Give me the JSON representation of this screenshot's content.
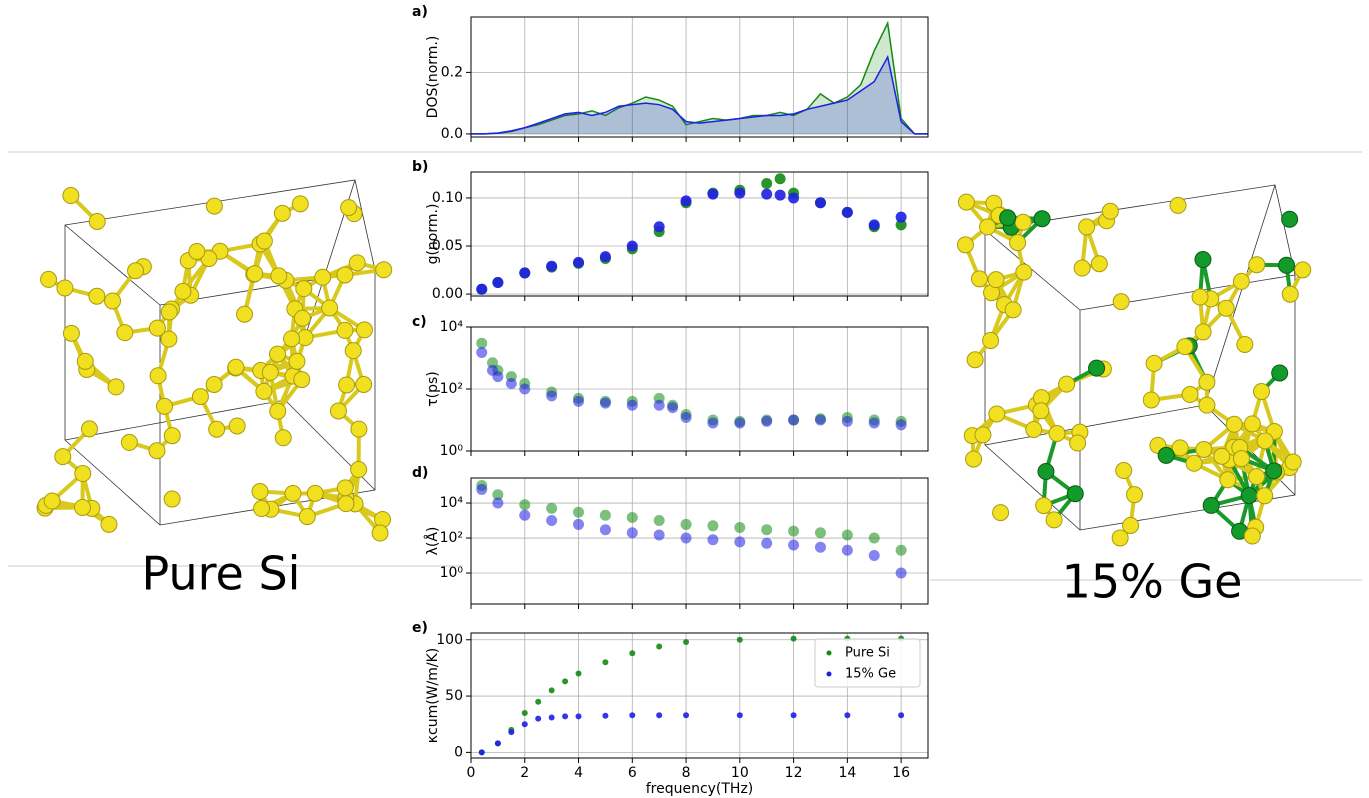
{
  "structures": [
    {
      "label": "Pure Si",
      "color": "#138a13"
    },
    {
      "label": "15% Ge",
      "color": "#1f1fe6"
    }
  ],
  "chart_data": [
    {
      "type": "area",
      "panel_label": "a)",
      "ylabel": "DOS(norm.)",
      "grid": true,
      "x": [
        0,
        0.5,
        1,
        1.5,
        2,
        2.5,
        3,
        3.5,
        4,
        4.5,
        5,
        5.5,
        6,
        6.5,
        7,
        7.5,
        8,
        8.5,
        9,
        9.5,
        10,
        10.5,
        11,
        11.5,
        12,
        12.5,
        13,
        13.5,
        14,
        14.5,
        15,
        15.5,
        16,
        16.5,
        17
      ],
      "xlim": [
        0,
        17
      ],
      "xticks": [
        0,
        2,
        4,
        6,
        8,
        10,
        12,
        14,
        16
      ],
      "ylim": [
        -0.01,
        0.38
      ],
      "yticks": [
        {
          "value": 0,
          "label": "0.0"
        },
        {
          "value": 0.2,
          "label": "0.2"
        }
      ],
      "series": [
        {
          "name": "Pure Si",
          "color": "#138a13",
          "values": [
            0,
            0,
            0.002,
            0.008,
            0.02,
            0.03,
            0.045,
            0.06,
            0.065,
            0.075,
            0.06,
            0.085,
            0.1,
            0.12,
            0.11,
            0.09,
            0.03,
            0.04,
            0.05,
            0.045,
            0.05,
            0.06,
            0.06,
            0.07,
            0.06,
            0.08,
            0.13,
            0.1,
            0.12,
            0.16,
            0.27,
            0.36,
            0.05,
            0,
            0
          ]
        },
        {
          "name": "15% Ge",
          "color": "#1f1fe6",
          "values": [
            0,
            0,
            0.003,
            0.01,
            0.02,
            0.035,
            0.05,
            0.065,
            0.07,
            0.06,
            0.07,
            0.09,
            0.095,
            0.1,
            0.095,
            0.08,
            0.04,
            0.035,
            0.04,
            0.045,
            0.05,
            0.055,
            0.06,
            0.06,
            0.065,
            0.08,
            0.09,
            0.1,
            0.11,
            0.14,
            0.17,
            0.25,
            0.04,
            0,
            0
          ]
        }
      ]
    },
    {
      "type": "scatter",
      "panel_label": "b)",
      "ylabel": "g(norm.)",
      "grid": true,
      "x": [
        0.4,
        1,
        2,
        3,
        4,
        5,
        6,
        7,
        8,
        9,
        10,
        11,
        11.5,
        12,
        13,
        14,
        15,
        16
      ],
      "xlim": [
        0,
        17
      ],
      "xticks": [
        0,
        2,
        4,
        6,
        8,
        10,
        12,
        14,
        16
      ],
      "ylim": [
        -0.002,
        0.127
      ],
      "yticks": [
        {
          "value": 0,
          "label": "0.00"
        },
        {
          "value": 0.05,
          "label": "0.05"
        },
        {
          "value": 0.1,
          "label": "0.10"
        }
      ],
      "series": [
        {
          "name": "Pure Si",
          "color": "#138a13",
          "values": [
            0.005,
            0.012,
            0.022,
            0.028,
            0.032,
            0.037,
            0.047,
            0.065,
            0.095,
            0.105,
            0.108,
            0.115,
            0.12,
            0.105,
            0.095,
            0.085,
            0.07,
            0.072
          ]
        },
        {
          "name": "15% Ge",
          "color": "#1f1fe6",
          "values": [
            0.005,
            0.012,
            0.022,
            0.029,
            0.033,
            0.039,
            0.05,
            0.07,
            0.097,
            0.104,
            0.105,
            0.104,
            0.103,
            0.1,
            0.095,
            0.085,
            0.072,
            0.08
          ]
        }
      ]
    },
    {
      "type": "scatter",
      "panel_label": "c)",
      "ylabel": "τ(ps)",
      "grid": true,
      "yscale": "log",
      "x": [
        0.4,
        0.8,
        1,
        1.5,
        2,
        3,
        4,
        5,
        6,
        7,
        7.5,
        8,
        9,
        10,
        11,
        12,
        13,
        14,
        15,
        16
      ],
      "xlim": [
        0,
        17
      ],
      "xticks": [
        0,
        2,
        4,
        6,
        8,
        10,
        12,
        14,
        16
      ],
      "ylim": [
        1,
        10000
      ],
      "yticks": [
        {
          "value": 1,
          "label": "10⁰"
        },
        {
          "value": 100,
          "label": "10²"
        },
        {
          "value": 10000,
          "label": "10⁴"
        }
      ],
      "series": [
        {
          "name": "Pure Si",
          "color": "#138a13",
          "values": [
            3000,
            700,
            400,
            250,
            150,
            80,
            50,
            40,
            40,
            50,
            30,
            15,
            10,
            9,
            10,
            10,
            11,
            12,
            10,
            9
          ]
        },
        {
          "name": "15% Ge",
          "color": "#1f1fe6",
          "values": [
            1500,
            400,
            250,
            150,
            100,
            60,
            40,
            35,
            30,
            30,
            25,
            12,
            8,
            8,
            9,
            10,
            10,
            9,
            8,
            7
          ]
        }
      ]
    },
    {
      "type": "scatter",
      "panel_label": "d)",
      "ylabel": "λ(Å)",
      "grid": true,
      "yscale": "log",
      "x": [
        0.4,
        1,
        2,
        3,
        4,
        5,
        6,
        7,
        8,
        9,
        10,
        11,
        12,
        13,
        14,
        15,
        16
      ],
      "xlim": [
        0,
        17
      ],
      "xticks": [
        0,
        2,
        4,
        6,
        8,
        10,
        12,
        14,
        16
      ],
      "ylim": [
        0.017,
        270000
      ],
      "yticks": [
        {
          "value": 1,
          "label": "10⁰"
        },
        {
          "value": 100,
          "label": "10²"
        },
        {
          "value": 10000,
          "label": "10⁴"
        }
      ],
      "series": [
        {
          "name": "Pure Si",
          "color": "#138a13",
          "values": [
            100000,
            30000,
            8000,
            5000,
            3000,
            2000,
            1500,
            1000,
            600,
            500,
            400,
            300,
            250,
            200,
            150,
            100,
            20
          ]
        },
        {
          "name": "15% Ge",
          "color": "#1f1fe6",
          "values": [
            60000,
            10000,
            2000,
            1000,
            600,
            300,
            200,
            150,
            100,
            80,
            60,
            50,
            40,
            30,
            20,
            10,
            1
          ]
        }
      ]
    },
    {
      "type": "scatter",
      "panel_label": "e)",
      "ylabel": "κcum(W/m/K)",
      "xlabel": "frequency(THz)",
      "grid": true,
      "legend": "upper right",
      "x": [
        0.4,
        1,
        1.5,
        2,
        2.5,
        3,
        3.5,
        4,
        5,
        6,
        7,
        8,
        10,
        12,
        14,
        16
      ],
      "xlim": [
        0,
        17
      ],
      "xticks": [
        0,
        2,
        4,
        6,
        8,
        10,
        12,
        14,
        16
      ],
      "ylim": [
        -5,
        106
      ],
      "yticks": [
        0,
        50,
        100
      ],
      "series": [
        {
          "name": "Pure Si",
          "color": "#138a13",
          "values": [
            0,
            8,
            20,
            35,
            45,
            55,
            63,
            70,
            80,
            88,
            94,
            98,
            100,
            101,
            101,
            101
          ]
        },
        {
          "name": "15% Ge",
          "color": "#1f1fe6",
          "values": [
            0,
            8,
            18,
            25,
            30,
            31,
            32,
            32,
            32.5,
            33,
            33,
            33,
            33,
            33,
            33,
            33
          ]
        }
      ]
    }
  ]
}
